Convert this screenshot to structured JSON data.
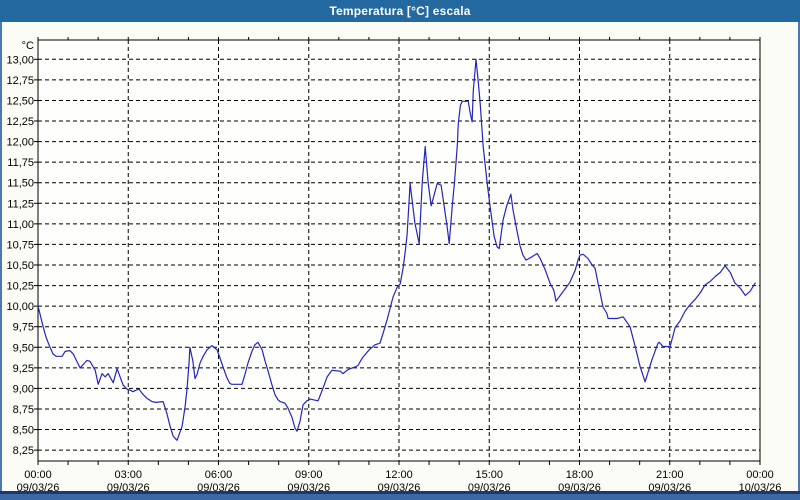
{
  "window": {
    "title": "Temperatura [°C] escala"
  },
  "colors": {
    "title_bar": "#2369a0",
    "title_text": "#ffffff",
    "frame": "#4a78b2",
    "frame_dark": "#1b3a6b",
    "background": "#fcfcf6",
    "plot_background": "#fefefc",
    "grid": "#000000",
    "axis": "#000000",
    "text": "#000000",
    "line": "#2424c0"
  },
  "chart_data": {
    "type": "line",
    "title": "Temperatura [°C] escala",
    "y_unit_label": "°C",
    "ylabel": "",
    "xlabel": "",
    "ylim": [
      8.25,
      13.0
    ],
    "y_tick_step": 0.25,
    "y_tick_labels": [
      "13,00",
      "12,75",
      "12,50",
      "12,25",
      "12,00",
      "11,75",
      "11,50",
      "11,25",
      "11,00",
      "10,75",
      "10,50",
      "10,25",
      "10,00",
      "9,75",
      "9,50",
      "9,25",
      "9,00",
      "8,75",
      "8,50",
      "8,25"
    ],
    "x_range_hours": [
      0,
      24
    ],
    "x_major_step_hours": 3,
    "x_minor_step_hours": 1,
    "grid": true,
    "legend": "none",
    "x_ticks": [
      {
        "time": "00:00",
        "date": "09/03/26"
      },
      {
        "time": "03:00",
        "date": "09/03/26"
      },
      {
        "time": "06:00",
        "date": "09/03/26"
      },
      {
        "time": "09:00",
        "date": "09/03/26"
      },
      {
        "time": "12:00",
        "date": "09/03/26"
      },
      {
        "time": "15:00",
        "date": "09/03/26"
      },
      {
        "time": "18:00",
        "date": "09/03/26"
      },
      {
        "time": "21:00",
        "date": "09/03/26"
      },
      {
        "time": "00:00",
        "date": "10/03/26"
      }
    ],
    "series": [
      {
        "name": "Temperatura",
        "color": "#2424c0",
        "points": [
          [
            0.0,
            10.0
          ],
          [
            0.07,
            9.9
          ],
          [
            0.17,
            9.75
          ],
          [
            0.27,
            9.62
          ],
          [
            0.4,
            9.5
          ],
          [
            0.5,
            9.42
          ],
          [
            0.6,
            9.39
          ],
          [
            0.8,
            9.39
          ],
          [
            0.9,
            9.45
          ],
          [
            1.06,
            9.46
          ],
          [
            1.17,
            9.42
          ],
          [
            1.4,
            9.25
          ],
          [
            1.63,
            9.34
          ],
          [
            1.73,
            9.33
          ],
          [
            1.9,
            9.22
          ],
          [
            2.0,
            9.05
          ],
          [
            2.13,
            9.18
          ],
          [
            2.23,
            9.14
          ],
          [
            2.33,
            9.18
          ],
          [
            2.5,
            9.07
          ],
          [
            2.63,
            9.24
          ],
          [
            2.83,
            9.04
          ],
          [
            2.96,
            8.99
          ],
          [
            3.06,
            8.98
          ],
          [
            3.16,
            8.96
          ],
          [
            3.26,
            8.98
          ],
          [
            3.36,
            8.99
          ],
          [
            3.46,
            8.94
          ],
          [
            3.62,
            8.88
          ],
          [
            3.79,
            8.84
          ],
          [
            3.92,
            8.83
          ],
          [
            4.16,
            8.84
          ],
          [
            4.28,
            8.7
          ],
          [
            4.39,
            8.54
          ],
          [
            4.49,
            8.42
          ],
          [
            4.62,
            8.37
          ],
          [
            4.79,
            8.54
          ],
          [
            4.89,
            8.78
          ],
          [
            4.95,
            8.98
          ],
          [
            5.02,
            9.3
          ],
          [
            5.05,
            9.5
          ],
          [
            5.15,
            9.33
          ],
          [
            5.22,
            9.12
          ],
          [
            5.29,
            9.17
          ],
          [
            5.39,
            9.31
          ],
          [
            5.49,
            9.39
          ],
          [
            5.62,
            9.47
          ],
          [
            5.78,
            9.52
          ],
          [
            5.95,
            9.47
          ],
          [
            6.05,
            9.37
          ],
          [
            6.15,
            9.26
          ],
          [
            6.28,
            9.13
          ],
          [
            6.38,
            9.06
          ],
          [
            6.45,
            9.05
          ],
          [
            6.78,
            9.05
          ],
          [
            6.88,
            9.17
          ],
          [
            6.98,
            9.31
          ],
          [
            7.11,
            9.45
          ],
          [
            7.21,
            9.53
          ],
          [
            7.31,
            9.56
          ],
          [
            7.45,
            9.47
          ],
          [
            7.55,
            9.33
          ],
          [
            7.65,
            9.21
          ],
          [
            7.78,
            9.04
          ],
          [
            7.88,
            8.92
          ],
          [
            7.98,
            8.86
          ],
          [
            8.05,
            8.84
          ],
          [
            8.21,
            8.82
          ],
          [
            8.31,
            8.76
          ],
          [
            8.45,
            8.64
          ],
          [
            8.54,
            8.52
          ],
          [
            8.61,
            8.48
          ],
          [
            8.71,
            8.6
          ],
          [
            8.78,
            8.74
          ],
          [
            8.81,
            8.8
          ],
          [
            8.94,
            8.85
          ],
          [
            9.04,
            8.87
          ],
          [
            9.31,
            8.85
          ],
          [
            9.47,
            9.0
          ],
          [
            9.61,
            9.14
          ],
          [
            9.77,
            9.22
          ],
          [
            10.04,
            9.21
          ],
          [
            10.14,
            9.18
          ],
          [
            10.27,
            9.22
          ],
          [
            10.37,
            9.24
          ],
          [
            10.54,
            9.26
          ],
          [
            10.64,
            9.28
          ],
          [
            10.7,
            9.32
          ],
          [
            10.8,
            9.38
          ],
          [
            10.94,
            9.44
          ],
          [
            11.04,
            9.48
          ],
          [
            11.14,
            9.51
          ],
          [
            11.2,
            9.53
          ],
          [
            11.37,
            9.55
          ],
          [
            11.47,
            9.67
          ],
          [
            11.6,
            9.83
          ],
          [
            11.7,
            9.97
          ],
          [
            11.8,
            10.11
          ],
          [
            11.94,
            10.23
          ],
          [
            12.04,
            10.27
          ],
          [
            12.14,
            10.47
          ],
          [
            12.21,
            10.67
          ],
          [
            12.27,
            10.87
          ],
          [
            12.37,
            11.49
          ],
          [
            12.53,
            11.01
          ],
          [
            12.67,
            10.76
          ],
          [
            12.77,
            11.5
          ],
          [
            12.87,
            11.94
          ],
          [
            12.97,
            11.49
          ],
          [
            13.07,
            11.22
          ],
          [
            13.27,
            11.49
          ],
          [
            13.4,
            11.47
          ],
          [
            13.6,
            10.97
          ],
          [
            13.67,
            10.76
          ],
          [
            13.77,
            11.21
          ],
          [
            13.84,
            11.49
          ],
          [
            13.94,
            11.97
          ],
          [
            13.97,
            12.22
          ],
          [
            14.04,
            12.44
          ],
          [
            14.1,
            12.49
          ],
          [
            14.3,
            12.49
          ],
          [
            14.37,
            12.34
          ],
          [
            14.43,
            12.24
          ],
          [
            14.47,
            12.62
          ],
          [
            14.53,
            12.87
          ],
          [
            14.56,
            13.0
          ],
          [
            14.63,
            12.75
          ],
          [
            14.7,
            12.46
          ],
          [
            14.8,
            11.94
          ],
          [
            14.93,
            11.5
          ],
          [
            15.03,
            11.2
          ],
          [
            15.16,
            10.85
          ],
          [
            15.26,
            10.72
          ],
          [
            15.33,
            10.7
          ],
          [
            15.46,
            11.05
          ],
          [
            15.59,
            11.23
          ],
          [
            15.72,
            11.36
          ],
          [
            15.79,
            11.17
          ],
          [
            15.92,
            10.92
          ],
          [
            16.02,
            10.74
          ],
          [
            16.12,
            10.62
          ],
          [
            16.22,
            10.56
          ],
          [
            16.42,
            10.6
          ],
          [
            16.59,
            10.64
          ],
          [
            16.69,
            10.58
          ],
          [
            16.79,
            10.5
          ],
          [
            16.85,
            10.45
          ],
          [
            17.02,
            10.28
          ],
          [
            17.15,
            10.19
          ],
          [
            17.22,
            10.06
          ],
          [
            17.52,
            10.21
          ],
          [
            17.68,
            10.29
          ],
          [
            17.85,
            10.43
          ],
          [
            17.95,
            10.56
          ],
          [
            18.02,
            10.62
          ],
          [
            18.12,
            10.63
          ],
          [
            18.28,
            10.58
          ],
          [
            18.42,
            10.5
          ],
          [
            18.52,
            10.46
          ],
          [
            18.62,
            10.27
          ],
          [
            18.68,
            10.17
          ],
          [
            18.78,
            9.99
          ],
          [
            18.91,
            9.91
          ],
          [
            18.95,
            9.85
          ],
          [
            19.25,
            9.85
          ],
          [
            19.35,
            9.86
          ],
          [
            19.45,
            9.87
          ],
          [
            19.68,
            9.75
          ],
          [
            19.85,
            9.51
          ],
          [
            20.01,
            9.27
          ],
          [
            20.18,
            9.08
          ],
          [
            20.41,
            9.35
          ],
          [
            20.61,
            9.55
          ],
          [
            20.65,
            9.56
          ],
          [
            20.78,
            9.51
          ],
          [
            21.01,
            9.51
          ],
          [
            21.18,
            9.74
          ],
          [
            21.34,
            9.82
          ],
          [
            21.51,
            9.94
          ],
          [
            21.68,
            10.02
          ],
          [
            21.84,
            10.08
          ],
          [
            22.01,
            10.16
          ],
          [
            22.18,
            10.26
          ],
          [
            22.34,
            10.3
          ],
          [
            22.51,
            10.36
          ],
          [
            22.68,
            10.41
          ],
          [
            22.84,
            10.49
          ],
          [
            23.01,
            10.41
          ],
          [
            23.17,
            10.28
          ],
          [
            23.34,
            10.22
          ],
          [
            23.51,
            10.13
          ],
          [
            23.67,
            10.18
          ],
          [
            23.84,
            10.28
          ]
        ]
      }
    ]
  }
}
